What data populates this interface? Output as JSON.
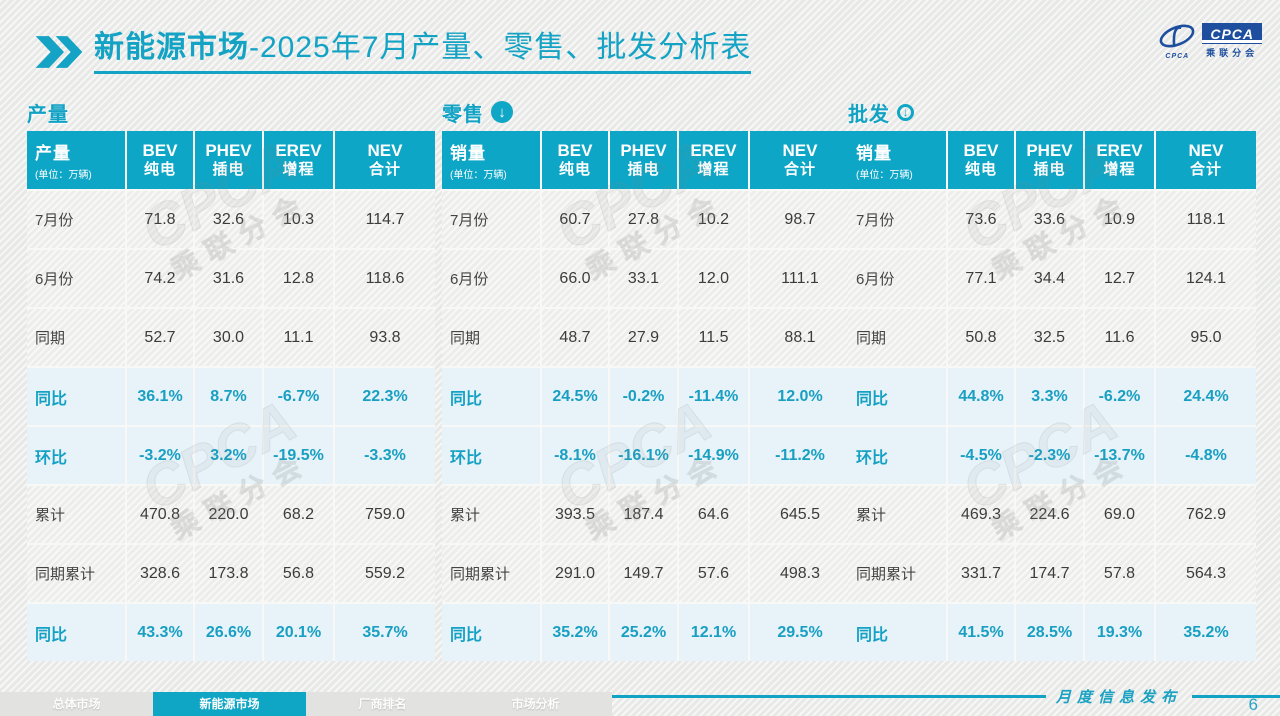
{
  "title": {
    "highlight": "新能源市场",
    "rest": "-2025年7月产量、零售、批发分析表"
  },
  "logo": {
    "name": "CPCA",
    "subtitle": "乘联分会",
    "swoosh_caption": "CPCA"
  },
  "unit": "(单位：万辆)",
  "icons": {
    "down_arrow": "↓"
  },
  "columns": [
    {
      "en": "BEV",
      "zh": "纯电"
    },
    {
      "en": "PHEV",
      "zh": "插电"
    },
    {
      "en": "EREV",
      "zh": "增程"
    },
    {
      "en": "NEV",
      "zh": "合计"
    }
  ],
  "tables": [
    {
      "section": "产量",
      "icon": "none",
      "label": "产量",
      "rows": [
        {
          "label": "7月份",
          "type": "normal",
          "values": [
            "71.8",
            "32.6",
            "10.3",
            "114.7"
          ]
        },
        {
          "label": "6月份",
          "type": "normal",
          "values": [
            "74.2",
            "31.6",
            "12.8",
            "118.6"
          ]
        },
        {
          "label": "同期",
          "type": "normal",
          "values": [
            "52.7",
            "30.0",
            "11.1",
            "93.8"
          ]
        },
        {
          "label": "同比",
          "type": "percent",
          "values": [
            "36.1%",
            "8.7%",
            "-6.7%",
            "22.3%"
          ]
        },
        {
          "label": "环比",
          "type": "percent",
          "values": [
            "-3.2%",
            "3.2%",
            "-19.5%",
            "-3.3%"
          ]
        },
        {
          "label": "累计",
          "type": "normal",
          "values": [
            "470.8",
            "220.0",
            "68.2",
            "759.0"
          ]
        },
        {
          "label": "同期累计",
          "type": "normal",
          "values": [
            "328.6",
            "173.8",
            "56.8",
            "559.2"
          ]
        },
        {
          "label": "同比",
          "type": "percent",
          "values": [
            "43.3%",
            "26.6%",
            "20.1%",
            "35.7%"
          ]
        }
      ]
    },
    {
      "section": "零售",
      "icon": "filled-down-arrow",
      "label": "销量",
      "rows": [
        {
          "label": "7月份",
          "type": "normal",
          "values": [
            "60.7",
            "27.8",
            "10.2",
            "98.7"
          ]
        },
        {
          "label": "6月份",
          "type": "normal",
          "values": [
            "66.0",
            "33.1",
            "12.0",
            "111.1"
          ]
        },
        {
          "label": "同期",
          "type": "normal",
          "values": [
            "48.7",
            "27.9",
            "11.5",
            "88.1"
          ]
        },
        {
          "label": "同比",
          "type": "percent",
          "values": [
            "24.5%",
            "-0.2%",
            "-11.4%",
            "12.0%"
          ]
        },
        {
          "label": "环比",
          "type": "percent",
          "values": [
            "-8.1%",
            "-16.1%",
            "-14.9%",
            "-11.2%"
          ]
        },
        {
          "label": "累计",
          "type": "normal",
          "values": [
            "393.5",
            "187.4",
            "64.6",
            "645.5"
          ]
        },
        {
          "label": "同期累计",
          "type": "normal",
          "values": [
            "291.0",
            "149.7",
            "57.6",
            "498.3"
          ]
        },
        {
          "label": "同比",
          "type": "percent",
          "values": [
            "35.2%",
            "25.2%",
            "12.1%",
            "29.5%"
          ]
        }
      ]
    },
    {
      "section": "批发",
      "icon": "outline-down-arrow",
      "label": "销量",
      "rows": [
        {
          "label": "7月份",
          "type": "normal",
          "values": [
            "73.6",
            "33.6",
            "10.9",
            "118.1"
          ]
        },
        {
          "label": "6月份",
          "type": "normal",
          "values": [
            "77.1",
            "34.4",
            "12.7",
            "124.1"
          ]
        },
        {
          "label": "同期",
          "type": "normal",
          "values": [
            "50.8",
            "32.5",
            "11.6",
            "95.0"
          ]
        },
        {
          "label": "同比",
          "type": "percent",
          "values": [
            "44.8%",
            "3.3%",
            "-6.2%",
            "24.4%"
          ]
        },
        {
          "label": "环比",
          "type": "percent",
          "values": [
            "-4.5%",
            "-2.3%",
            "-13.7%",
            "-4.8%"
          ]
        },
        {
          "label": "累计",
          "type": "normal",
          "values": [
            "469.3",
            "224.6",
            "69.0",
            "762.9"
          ]
        },
        {
          "label": "同期累计",
          "type": "normal",
          "values": [
            "331.7",
            "174.7",
            "57.8",
            "564.3"
          ]
        },
        {
          "label": "同比",
          "type": "percent",
          "values": [
            "41.5%",
            "28.5%",
            "19.3%",
            "35.2%"
          ]
        }
      ]
    }
  ],
  "watermark": {
    "line1": "CPCA",
    "line2": "乘联分会"
  },
  "footer": {
    "tabs": [
      {
        "label": "总体市场",
        "active": false
      },
      {
        "label": "新能源市场",
        "active": true
      },
      {
        "label": "厂商排名",
        "active": false
      },
      {
        "label": "市场分析",
        "active": false
      }
    ],
    "publish_label": "月度信息发布",
    "page": "6"
  },
  "colors": {
    "primary": "#0EA6C6",
    "percent_text": "#189FC2",
    "highlight_row_bg": "#E7F3F9",
    "logo_blue": "#1D4F9E"
  }
}
